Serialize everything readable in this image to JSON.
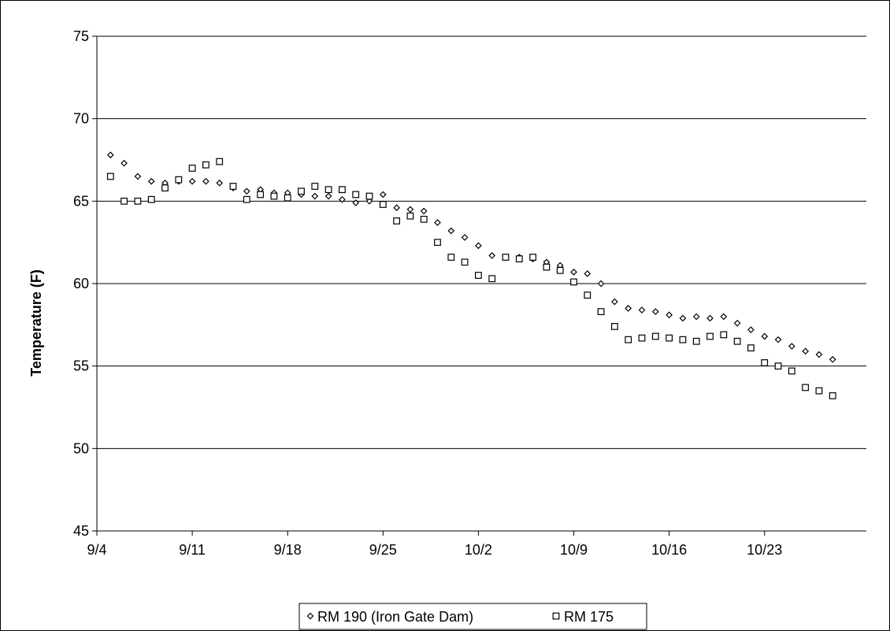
{
  "chart_data": {
    "type": "scatter",
    "title": "",
    "xlabel": "",
    "ylabel": "Temperature (F)",
    "ylim": [
      45,
      75
    ],
    "yticks": [
      45,
      50,
      55,
      60,
      65,
      70,
      75
    ],
    "xlim": [
      "9/4",
      "10/30"
    ],
    "xticks": [
      "9/4",
      "9/11",
      "9/18",
      "9/25",
      "10/2",
      "10/9",
      "10/16",
      "10/23"
    ],
    "grid": "horizontal",
    "legend_position": "bottom",
    "series": [
      {
        "name": "RM 190 (Iron Gate Dam)",
        "marker": "diamond",
        "x": [
          "9/5",
          "9/6",
          "9/7",
          "9/8",
          "9/9",
          "9/10",
          "9/11",
          "9/12",
          "9/13",
          "9/14",
          "9/15",
          "9/16",
          "9/17",
          "9/18",
          "9/19",
          "9/20",
          "9/21",
          "9/22",
          "9/23",
          "9/24",
          "9/25",
          "9/26",
          "9/27",
          "9/28",
          "9/29",
          "9/30",
          "10/1",
          "10/2",
          "10/3",
          "10/4",
          "10/5",
          "10/6",
          "10/7",
          "10/8",
          "10/9",
          "10/10",
          "10/11",
          "10/12",
          "10/13",
          "10/14",
          "10/15",
          "10/16",
          "10/17",
          "10/18",
          "10/19",
          "10/20",
          "10/21",
          "10/22",
          "10/23",
          "10/24",
          "10/25",
          "10/26",
          "10/27",
          "10/28"
        ],
        "y": [
          67.8,
          67.3,
          66.5,
          66.2,
          66.1,
          66.2,
          66.2,
          66.2,
          66.1,
          65.8,
          65.6,
          65.7,
          65.5,
          65.5,
          65.4,
          65.3,
          65.3,
          65.1,
          64.9,
          65.0,
          65.4,
          64.6,
          64.5,
          64.4,
          63.7,
          63.2,
          62.8,
          62.3,
          61.7,
          61.6,
          61.6,
          61.5,
          61.3,
          61.1,
          60.7,
          60.6,
          60.0,
          58.9,
          58.5,
          58.4,
          58.3,
          58.1,
          57.9,
          58.0,
          57.9,
          58.0,
          57.6,
          57.2,
          56.8,
          56.6,
          56.2,
          55.9,
          55.7,
          55.4
        ]
      },
      {
        "name": "RM 175",
        "marker": "square",
        "x": [
          "9/5",
          "9/6",
          "9/7",
          "9/8",
          "9/9",
          "9/10",
          "9/11",
          "9/12",
          "9/13",
          "9/14",
          "9/15",
          "9/16",
          "9/17",
          "9/18",
          "9/19",
          "9/20",
          "9/21",
          "9/22",
          "9/23",
          "9/24",
          "9/25",
          "9/26",
          "9/27",
          "9/28",
          "9/29",
          "9/30",
          "10/1",
          "10/2",
          "10/3",
          "10/4",
          "10/5",
          "10/6",
          "10/7",
          "10/8",
          "10/9",
          "10/10",
          "10/11",
          "10/12",
          "10/13",
          "10/14",
          "10/15",
          "10/16",
          "10/17",
          "10/18",
          "10/19",
          "10/20",
          "10/21",
          "10/22",
          "10/23",
          "10/24",
          "10/25",
          "10/26",
          "10/27",
          "10/28"
        ],
        "y": [
          66.5,
          65.0,
          65.0,
          65.1,
          65.8,
          66.3,
          67.0,
          67.2,
          67.4,
          65.9,
          65.1,
          65.4,
          65.3,
          65.2,
          65.6,
          65.9,
          65.7,
          65.7,
          65.4,
          65.3,
          64.8,
          63.8,
          64.1,
          63.9,
          62.5,
          61.6,
          61.3,
          60.5,
          60.3,
          61.6,
          61.5,
          61.6,
          61.0,
          60.8,
          60.1,
          59.3,
          58.3,
          57.4,
          56.6,
          56.7,
          56.8,
          56.7,
          56.6,
          56.5,
          56.8,
          56.9,
          56.5,
          56.1,
          55.2,
          55.0,
          54.7,
          53.7,
          53.5,
          53.2
        ]
      }
    ]
  }
}
